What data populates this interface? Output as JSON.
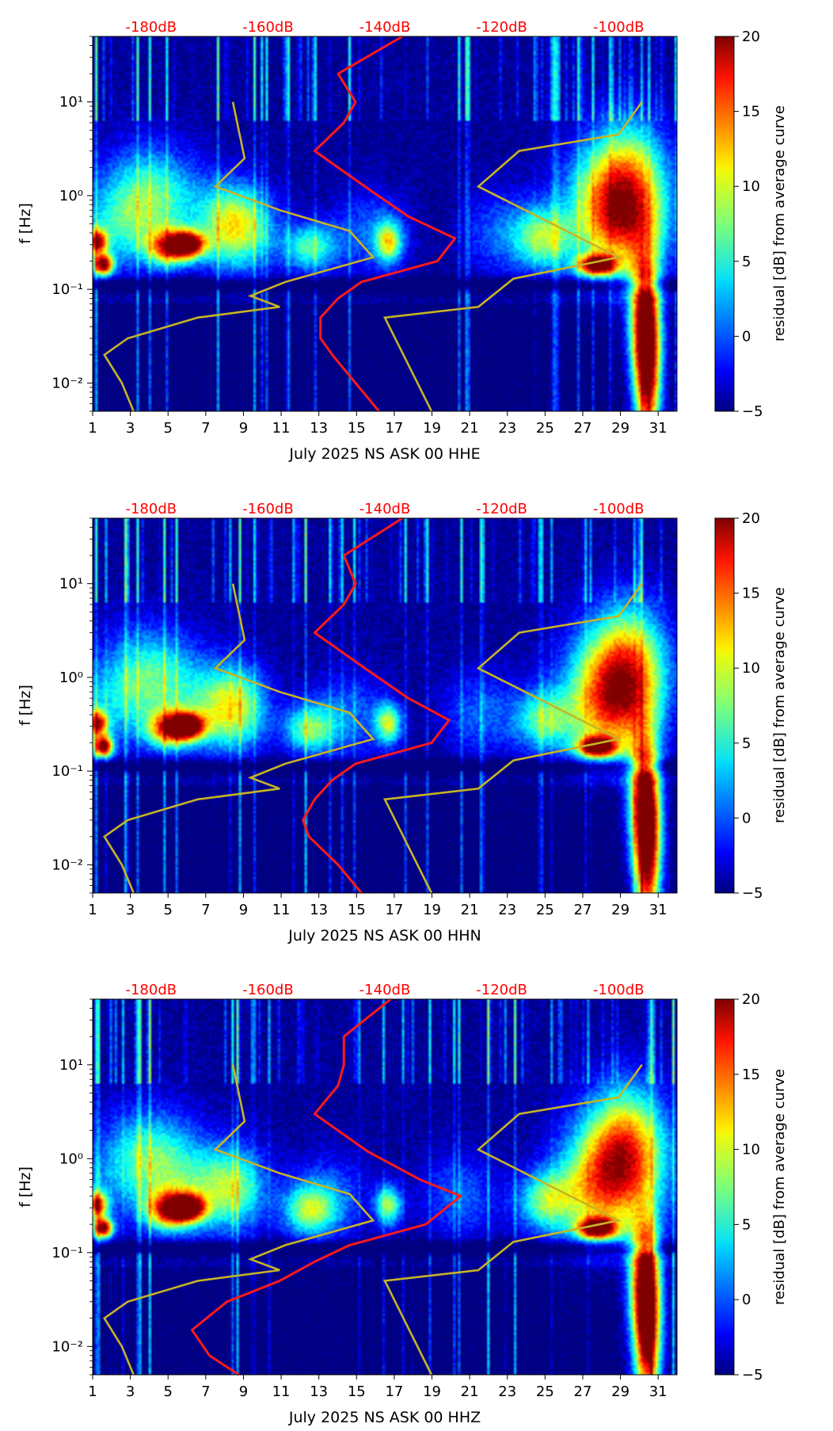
{
  "colors": {
    "noise_curve": "#ff1a1a",
    "model_curve": "#c8b424",
    "top_label": "#ff0000",
    "axis": "#000000"
  },
  "colorbar": {
    "label": "residual [dB] from average curve",
    "min": -5,
    "max": 20,
    "ticks": [
      "20",
      "15",
      "10",
      "5",
      "0",
      "−5"
    ],
    "tick_values": [
      20,
      15,
      10,
      5,
      0,
      -5
    ]
  },
  "top_db_labels": [
    "-180dB",
    "-160dB",
    "-140dB",
    "-120dB",
    "-100dB"
  ],
  "top_db_values": [
    -180,
    -160,
    -140,
    -120,
    -100
  ],
  "chart_data": [
    {
      "type": "heatmap",
      "title": "",
      "xlabel": "July 2025 NS ASK 00 HHE",
      "ylabel": "f [Hz]",
      "x_range": [
        1,
        32
      ],
      "x_ticks": [
        "1",
        "3",
        "5",
        "7",
        "9",
        "11",
        "13",
        "15",
        "17",
        "19",
        "21",
        "23",
        "25",
        "27",
        "29",
        "31"
      ],
      "y_scale": "log",
      "y_range": [
        0.005,
        50
      ],
      "y_ticks": [
        "10⁻²",
        "10⁻¹",
        "10⁰",
        "10¹"
      ],
      "z_label": "residual [dB] from average curve",
      "z_range": [
        -5,
        20
      ],
      "noise_curve_db": [
        {
          "f": 0.005,
          "db": -141
        },
        {
          "f": 0.01,
          "db": -145
        },
        {
          "f": 0.02,
          "db": -149
        },
        {
          "f": 0.03,
          "db": -151
        },
        {
          "f": 0.05,
          "db": -151
        },
        {
          "f": 0.08,
          "db": -148
        },
        {
          "f": 0.12,
          "db": -144
        },
        {
          "f": 0.2,
          "db": -131
        },
        {
          "f": 0.35,
          "db": -128
        },
        {
          "f": 0.6,
          "db": -136
        },
        {
          "f": 1.2,
          "db": -143
        },
        {
          "f": 3,
          "db": -152
        },
        {
          "f": 6,
          "db": -147
        },
        {
          "f": 10,
          "db": -145
        },
        {
          "f": 20,
          "db": -148
        },
        {
          "f": 50,
          "db": -137
        }
      ]
    },
    {
      "type": "heatmap",
      "title": "",
      "xlabel": "July 2025 NS ASK 00 HHN",
      "ylabel": "f [Hz]",
      "x_range": [
        1,
        32
      ],
      "x_ticks": [
        "1",
        "3",
        "5",
        "7",
        "9",
        "11",
        "13",
        "15",
        "17",
        "19",
        "21",
        "23",
        "25",
        "27",
        "29",
        "31"
      ],
      "y_scale": "log",
      "y_range": [
        0.005,
        50
      ],
      "y_ticks": [
        "10⁻²",
        "10⁻¹",
        "10⁰",
        "10¹"
      ],
      "z_label": "residual [dB] from average curve",
      "z_range": [
        -5,
        20
      ],
      "noise_curve_db": [
        {
          "f": 0.005,
          "db": -144
        },
        {
          "f": 0.01,
          "db": -148
        },
        {
          "f": 0.02,
          "db": -153
        },
        {
          "f": 0.03,
          "db": -154
        },
        {
          "f": 0.05,
          "db": -152
        },
        {
          "f": 0.08,
          "db": -149
        },
        {
          "f": 0.12,
          "db": -145
        },
        {
          "f": 0.2,
          "db": -132
        },
        {
          "f": 0.35,
          "db": -129
        },
        {
          "f": 0.6,
          "db": -136
        },
        {
          "f": 1.2,
          "db": -143
        },
        {
          "f": 3,
          "db": -152
        },
        {
          "f": 6,
          "db": -147
        },
        {
          "f": 10,
          "db": -145
        },
        {
          "f": 20,
          "db": -147
        },
        {
          "f": 50,
          "db": -137
        }
      ]
    },
    {
      "type": "heatmap",
      "title": "",
      "xlabel": "July 2025 NS ASK 00 HHZ",
      "ylabel": "f [Hz]",
      "x_range": [
        1,
        32
      ],
      "x_ticks": [
        "1",
        "3",
        "5",
        "7",
        "9",
        "11",
        "13",
        "15",
        "17",
        "19",
        "21",
        "23",
        "25",
        "27",
        "29",
        "31"
      ],
      "y_scale": "log",
      "y_range": [
        0.005,
        50
      ],
      "y_ticks": [
        "10⁻²",
        "10⁻¹",
        "10⁰",
        "10¹"
      ],
      "z_label": "residual [dB] from average curve",
      "z_range": [
        -5,
        20
      ],
      "noise_curve_db": [
        {
          "f": 0.005,
          "db": -165
        },
        {
          "f": 0.008,
          "db": -170
        },
        {
          "f": 0.015,
          "db": -173
        },
        {
          "f": 0.03,
          "db": -167
        },
        {
          "f": 0.05,
          "db": -158
        },
        {
          "f": 0.08,
          "db": -152
        },
        {
          "f": 0.12,
          "db": -146
        },
        {
          "f": 0.2,
          "db": -133
        },
        {
          "f": 0.4,
          "db": -127
        },
        {
          "f": 0.6,
          "db": -134
        },
        {
          "f": 1.2,
          "db": -143
        },
        {
          "f": 3,
          "db": -152
        },
        {
          "f": 6,
          "db": -148
        },
        {
          "f": 10,
          "db": -147
        },
        {
          "f": 20,
          "db": -147
        },
        {
          "f": 50,
          "db": -139
        }
      ]
    }
  ],
  "model_curves_db": {
    "low_noise": [
      {
        "f": 0.005,
        "db": -183
      },
      {
        "f": 0.01,
        "db": -185
      },
      {
        "f": 0.02,
        "db": -188
      },
      {
        "f": 0.03,
        "db": -184
      },
      {
        "f": 0.05,
        "db": -172
      },
      {
        "f": 0.065,
        "db": -158
      },
      {
        "f": 0.085,
        "db": -163
      },
      {
        "f": 0.12,
        "db": -157
      },
      {
        "f": 0.22,
        "db": -142
      },
      {
        "f": 0.42,
        "db": -146
      },
      {
        "f": 0.7,
        "db": -158
      },
      {
        "f": 1.25,
        "db": -169
      },
      {
        "f": 2.5,
        "db": -164
      },
      {
        "f": 10,
        "db": -166
      }
    ],
    "high_noise": [
      {
        "f": 0.005,
        "db": -132
      },
      {
        "f": 0.05,
        "db": -140
      },
      {
        "f": 0.065,
        "db": -124
      },
      {
        "f": 0.13,
        "db": -118
      },
      {
        "f": 0.22,
        "db": -100
      },
      {
        "f": 1.25,
        "db": -124
      },
      {
        "f": 3,
        "db": -117
      },
      {
        "f": 4.5,
        "db": -100
      },
      {
        "f": 10,
        "db": -96
      }
    ]
  },
  "spectral_features": [
    {
      "day": 1.5,
      "f": 0.18,
      "z": 19,
      "sx": 0.5,
      "sy": 0.05
    },
    {
      "day": 1.2,
      "f": 0.32,
      "z": 14,
      "sx": 0.5,
      "sy": 0.06
    },
    {
      "day": 6,
      "f": 0.3,
      "z": 17,
      "sx": 0.9,
      "sy": 0.06
    },
    {
      "day": 5,
      "f": 0.28,
      "z": 12,
      "sx": 1.2,
      "sy": 0.09
    },
    {
      "day": 27.8,
      "f": 0.18,
      "z": 19,
      "sx": 1.0,
      "sy": 0.05
    },
    {
      "day": 4,
      "f": 0.9,
      "z": 7,
      "sx": 2.6,
      "sy": 0.25
    },
    {
      "day": 8.5,
      "f": 0.5,
      "z": 6,
      "sx": 1.8,
      "sy": 0.2
    },
    {
      "day": 12.5,
      "f": 0.28,
      "z": 6,
      "sx": 1.4,
      "sy": 0.12
    },
    {
      "day": 16.7,
      "f": 0.32,
      "z": 8,
      "sx": 0.7,
      "sy": 0.1
    },
    {
      "day": 28.5,
      "f": 0.7,
      "z": 9,
      "sx": 2.5,
      "sy": 0.3
    },
    {
      "day": 29.5,
      "f": 1.5,
      "z": 7,
      "sx": 2,
      "sy": 0.3
    },
    {
      "day": 25,
      "f": 0.35,
      "z": 6,
      "sx": 1.5,
      "sy": 0.15
    },
    {
      "day": 30.5,
      "f": 0.012,
      "z": 18,
      "sx": 0.7,
      "sy": 0.4
    },
    {
      "day": 30.3,
      "f": 0.05,
      "z": 14,
      "sx": 0.8,
      "sy": 0.3
    }
  ]
}
